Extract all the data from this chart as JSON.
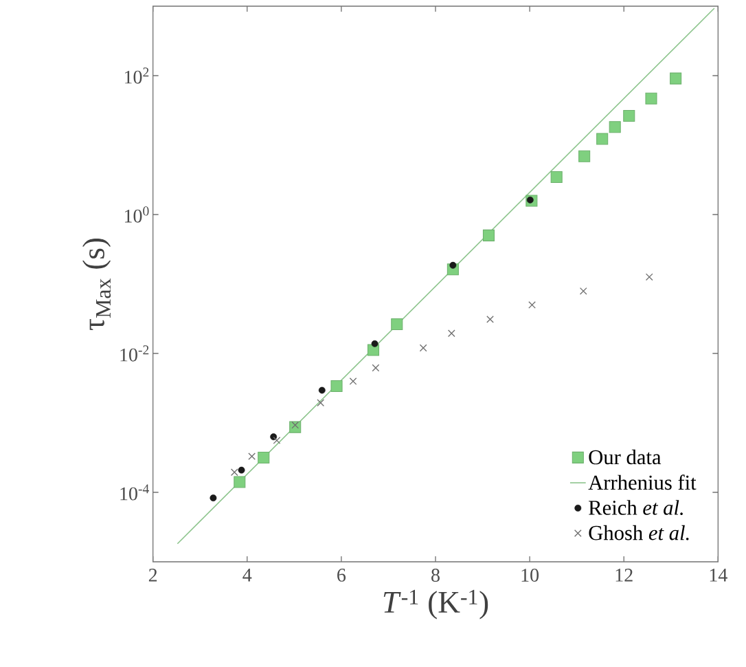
{
  "chart_data": {
    "type": "scatter",
    "xlabel": "*T*$^{-1}$ (K$^{-1}$)",
    "ylabel": "τ$_{Max}$ (s)",
    "xlim": [
      2,
      14
    ],
    "ylim": [
      1e-05,
      1000
    ],
    "log": "y",
    "legend": "bottom right",
    "grid": false,
    "xticks": [
      2,
      4,
      6,
      8,
      10,
      12,
      14
    ],
    "yticks": [
      {
        "value": 0.0001,
        "label": "10$^{-4}$"
      },
      {
        "value": 0.01,
        "label": "10$^{-2}$"
      },
      {
        "value": 1,
        "label": "10$^{0}$"
      },
      {
        "value": 100,
        "label": "10$^{2}$"
      }
    ],
    "series": [
      {
        "name": "Our data",
        "marker": "square",
        "color": "#7fd07f",
        "x": [
          3.84,
          4.35,
          5.02,
          5.9,
          6.68,
          7.18,
          8.37,
          9.13,
          10.04,
          10.57,
          11.16,
          11.54,
          11.81,
          12.11,
          12.58,
          13.1
        ],
        "values": [
          0.000141,
          0.000316,
          0.00087,
          0.00339,
          0.0112,
          0.0263,
          0.162,
          0.5,
          1.58,
          3.47,
          6.9,
          12.3,
          18.2,
          26.3,
          46.8,
          91
        ]
      },
      {
        "name": "Arrhenius fit",
        "type": "line",
        "marker": "none",
        "line_style": "solid",
        "color": "#8cc48c",
        "x": [
          2.52,
          13.92
        ],
        "values": [
          1.82e-05,
          933
        ]
      },
      {
        "name": "Reich *et al.*",
        "marker": "circle",
        "color": "#1a1a1a",
        "x": [
          3.28,
          3.88,
          4.56,
          5.59,
          6.71,
          8.37,
          10.01
        ],
        "values": [
          8.3e-05,
          0.000209,
          0.00063,
          0.00295,
          0.0138,
          0.186,
          1.62
        ]
      },
      {
        "name": "Ghosh *et al.*",
        "marker": "cross",
        "color": "#6e6e6e",
        "x": [
          3.73,
          4.1,
          4.63,
          5.02,
          5.56,
          6.25,
          6.73,
          7.74,
          8.34,
          9.16,
          10.05,
          11.14,
          12.54
        ],
        "values": [
          0.000195,
          0.00033,
          0.00056,
          0.00093,
          0.00195,
          0.00398,
          0.0062,
          0.012,
          0.0195,
          0.031,
          0.05,
          0.079,
          0.126
        ]
      }
    ]
  }
}
